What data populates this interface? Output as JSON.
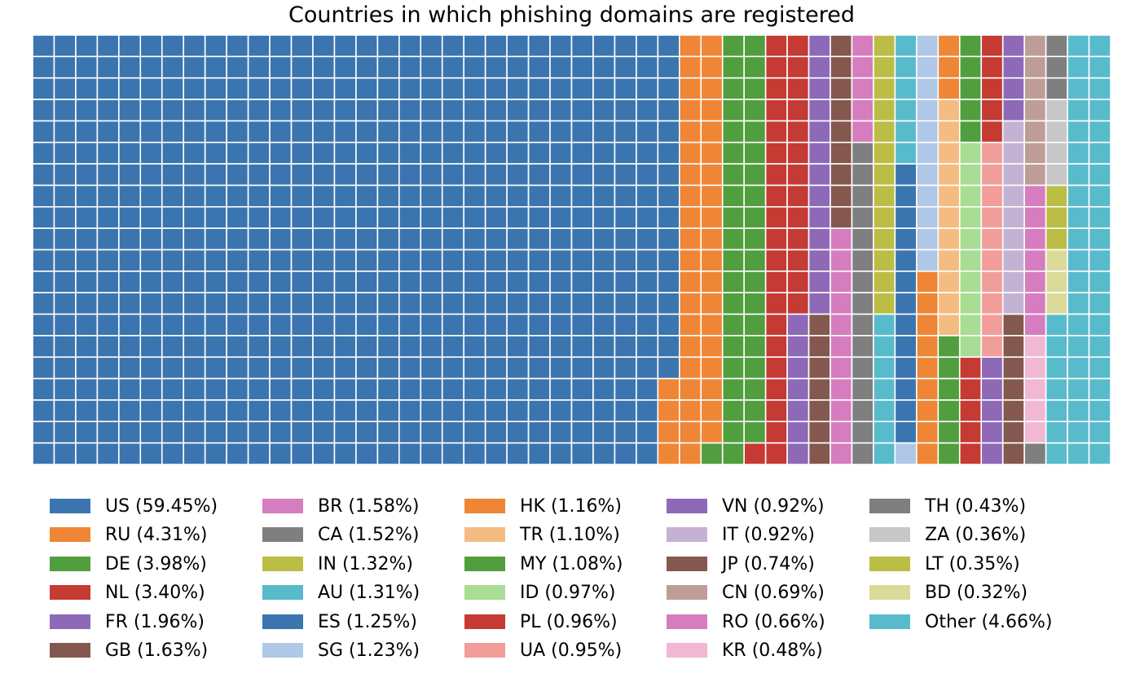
{
  "chart_data": {
    "type": "waffle",
    "title": "Countries in which phishing domains are registered",
    "grid": {
      "rows": 20,
      "columns": 50,
      "unit": "percent of phishing domains (1 cell = 0.1%)"
    },
    "series": [
      {
        "name": "US",
        "label": "US (59.45%)",
        "value": 59.45,
        "color": "#3b75af"
      },
      {
        "name": "RU",
        "label": "RU (4.31%)",
        "value": 4.31,
        "color": "#ef8636"
      },
      {
        "name": "DE",
        "label": "DE (3.98%)",
        "value": 3.98,
        "color": "#519e3e"
      },
      {
        "name": "NL",
        "label": "NL (3.40%)",
        "value": 3.4,
        "color": "#c53a32"
      },
      {
        "name": "FR",
        "label": "FR (1.96%)",
        "value": 1.96,
        "color": "#8d69b8"
      },
      {
        "name": "GB",
        "label": "GB (1.63%)",
        "value": 1.63,
        "color": "#84584e"
      },
      {
        "name": "BR",
        "label": "BR (1.58%)",
        "value": 1.58,
        "color": "#d57dbe"
      },
      {
        "name": "CA",
        "label": "CA (1.52%)",
        "value": 1.52,
        "color": "#7f7f7f"
      },
      {
        "name": "IN",
        "label": "IN (1.32%)",
        "value": 1.32,
        "color": "#bcbd45"
      },
      {
        "name": "AU",
        "label": "AU (1.31%)",
        "value": 1.31,
        "color": "#58bbcc"
      },
      {
        "name": "ES",
        "label": "ES (1.25%)",
        "value": 1.25,
        "color": "#3b75af"
      },
      {
        "name": "SG",
        "label": "SG (1.23%)",
        "value": 1.23,
        "color": "#afc8e7"
      },
      {
        "name": "HK",
        "label": "HK (1.16%)",
        "value": 1.16,
        "color": "#ef8636"
      },
      {
        "name": "TR",
        "label": "TR (1.10%)",
        "value": 1.1,
        "color": "#f5bc82"
      },
      {
        "name": "MY",
        "label": "MY (1.08%)",
        "value": 1.08,
        "color": "#519e3e"
      },
      {
        "name": "ID",
        "label": "ID (0.97%)",
        "value": 0.97,
        "color": "#a8dd93"
      },
      {
        "name": "PL",
        "label": "PL (0.96%)",
        "value": 0.96,
        "color": "#c53a32"
      },
      {
        "name": "UA",
        "label": "UA (0.95%)",
        "value": 0.95,
        "color": "#f19d99"
      },
      {
        "name": "VN",
        "label": "VN (0.92%)",
        "value": 0.92,
        "color": "#8d69b8"
      },
      {
        "name": "IT",
        "label": "IT (0.92%)",
        "value": 0.92,
        "color": "#c4b2d4"
      },
      {
        "name": "JP",
        "label": "JP (0.74%)",
        "value": 0.74,
        "color": "#84584e"
      },
      {
        "name": "CN",
        "label": "CN (0.69%)",
        "value": 0.69,
        "color": "#bf9d97"
      },
      {
        "name": "RO",
        "label": "RO (0.66%)",
        "value": 0.66,
        "color": "#d57dbe"
      },
      {
        "name": "KR",
        "label": "KR (0.48%)",
        "value": 0.48,
        "color": "#f0b8d3"
      },
      {
        "name": "TH",
        "label": "TH (0.43%)",
        "value": 0.43,
        "color": "#7f7f7f"
      },
      {
        "name": "ZA",
        "label": "ZA (0.36%)",
        "value": 0.36,
        "color": "#c7c7c7"
      },
      {
        "name": "LT",
        "label": "LT (0.35%)",
        "value": 0.35,
        "color": "#bcbd45"
      },
      {
        "name": "BD",
        "label": "BD (0.32%)",
        "value": 0.32,
        "color": "#dbdb99"
      },
      {
        "name": "Other",
        "label": "Other (4.66%)",
        "value": 4.66,
        "color": "#58bbcc"
      }
    ],
    "legend": {
      "placement": "bottom",
      "columns": 5
    }
  }
}
